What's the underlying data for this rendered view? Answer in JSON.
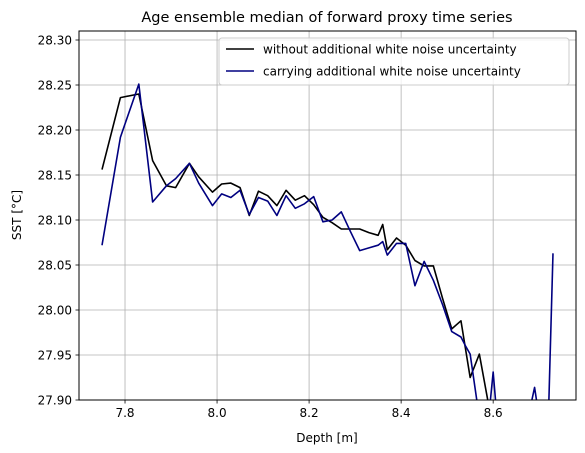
{
  "chart_data": {
    "type": "line",
    "title": "Age ensemble median of forward proxy time series",
    "xlabel": "Depth [m]",
    "ylabel": "SST [°C]",
    "xlim": [
      7.7,
      8.78
    ],
    "ylim": [
      27.9,
      28.31
    ],
    "xticks": [
      7.8,
      8.0,
      8.2,
      8.4,
      8.6
    ],
    "yticks": [
      27.9,
      27.95,
      28.0,
      28.05,
      28.1,
      28.15,
      28.2,
      28.25,
      28.3
    ],
    "grid": true,
    "legend_position": "top-right",
    "series": [
      {
        "name": "without additional white noise uncertainty",
        "color": "#000000",
        "x": [
          7.75,
          7.79,
          7.83,
          7.86,
          7.89,
          7.91,
          7.94,
          7.96,
          7.99,
          8.01,
          8.03,
          8.05,
          8.07,
          8.09,
          8.11,
          8.13,
          8.15,
          8.17,
          8.19,
          8.21,
          8.23,
          8.25,
          8.27,
          8.29,
          8.31,
          8.33,
          8.35,
          8.36,
          8.37,
          8.39,
          8.41,
          8.43,
          8.45,
          8.47,
          8.49,
          8.51,
          8.53,
          8.55,
          8.57,
          8.59,
          8.61
        ],
        "y": [
          28.156,
          28.236,
          28.24,
          28.166,
          28.138,
          28.136,
          28.163,
          28.148,
          28.131,
          28.14,
          28.141,
          28.136,
          28.105,
          28.132,
          28.127,
          28.116,
          28.133,
          28.122,
          28.127,
          28.117,
          28.103,
          28.097,
          28.09,
          28.09,
          28.09,
          28.086,
          28.083,
          28.095,
          28.067,
          28.08,
          28.072,
          28.055,
          28.049,
          28.049,
          28.013,
          27.979,
          27.988,
          27.925,
          27.951,
          27.895,
          27.86
        ]
      },
      {
        "name": "carrying additional white noise uncertainty",
        "color": "#000080",
        "x": [
          7.75,
          7.79,
          7.83,
          7.86,
          7.89,
          7.91,
          7.94,
          7.96,
          7.99,
          8.01,
          8.03,
          8.05,
          8.07,
          8.09,
          8.11,
          8.13,
          8.15,
          8.17,
          8.19,
          8.21,
          8.23,
          8.25,
          8.27,
          8.29,
          8.31,
          8.33,
          8.35,
          8.36,
          8.37,
          8.39,
          8.41,
          8.43,
          8.45,
          8.47,
          8.49,
          8.51,
          8.53,
          8.54,
          8.55,
          8.57,
          8.59,
          8.6,
          8.61,
          8.63,
          8.66,
          8.68,
          8.69,
          8.7,
          8.72,
          8.73
        ],
        "y": [
          28.072,
          28.192,
          28.251,
          28.12,
          28.138,
          28.146,
          28.163,
          28.141,
          28.116,
          28.129,
          28.125,
          28.133,
          28.106,
          28.125,
          28.121,
          28.105,
          28.127,
          28.113,
          28.118,
          28.126,
          28.098,
          28.1,
          28.109,
          28.087,
          28.066,
          28.069,
          28.072,
          28.076,
          28.061,
          28.074,
          28.074,
          28.027,
          28.054,
          28.033,
          28.006,
          27.976,
          27.97,
          27.96,
          27.951,
          27.88,
          27.879,
          27.931,
          27.87,
          27.88,
          27.88,
          27.89,
          27.914,
          27.88,
          27.88,
          28.063
        ]
      }
    ]
  }
}
